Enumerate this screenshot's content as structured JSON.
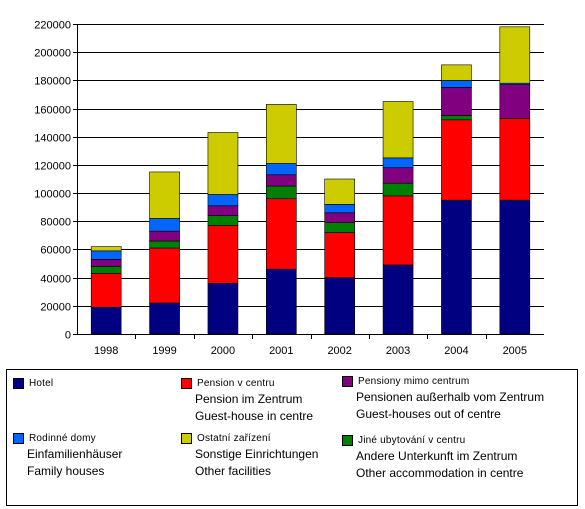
{
  "chart_data": {
    "type": "bar",
    "stacked": true,
    "categories": [
      "1998",
      "1999",
      "2000",
      "2001",
      "2002",
      "2003",
      "2004",
      "2005"
    ],
    "ylim": [
      0,
      220000
    ],
    "yticks": [
      "0",
      "20000",
      "40000",
      "60000",
      "80000",
      "100000",
      "120000",
      "140000",
      "160000",
      "180000",
      "200000",
      "220000"
    ],
    "ytick_values": [
      0,
      20000,
      40000,
      60000,
      80000,
      100000,
      120000,
      140000,
      160000,
      180000,
      200000,
      220000
    ],
    "grid": true,
    "legend_position": "bottom",
    "series": [
      {
        "key": "hotel",
        "color": "#000080",
        "values": [
          19000,
          22000,
          36000,
          46000,
          40000,
          49000,
          95000,
          95000
        ]
      },
      {
        "key": "pension_centre",
        "color": "#ff0000",
        "values": [
          24000,
          39000,
          41000,
          50000,
          32000,
          49000,
          57000,
          58000
        ]
      },
      {
        "key": "other_accommodation_centre",
        "color": "#008000",
        "values": [
          5000,
          5000,
          7000,
          9000,
          7000,
          9000,
          3000,
          0
        ]
      },
      {
        "key": "pensions_out_of_centre",
        "color": "#800080",
        "values": [
          5000,
          7000,
          7000,
          8000,
          7000,
          11000,
          20000,
          24000
        ]
      },
      {
        "key": "family_houses",
        "color": "#0066ff",
        "values": [
          6000,
          9000,
          8000,
          8000,
          6000,
          7000,
          5000,
          1000
        ]
      },
      {
        "key": "other_facilities",
        "color": "#cccc00",
        "values": [
          3000,
          33000,
          44000,
          42000,
          18000,
          40000,
          11000,
          40000
        ]
      }
    ]
  },
  "legend": [
    {
      "series": "hotel",
      "color": "#000080",
      "name": "Hotel",
      "lines": []
    },
    {
      "series": "pension_centre",
      "color": "#ff0000",
      "name": "Pension v centru",
      "lines": [
        "Pension im Zentrum",
        "Guest-house in centre"
      ]
    },
    {
      "series": "pensions_out_of_centre",
      "color": "#800080",
      "name": "Pensiony mimo centrum",
      "lines": [
        "Pensionen außerhalb vom Zentrum",
        "Guest-houses out of centre"
      ]
    },
    {
      "series": "family_houses",
      "color": "#0066ff",
      "name": "Rodinné domy",
      "lines": [
        "Einfamilienhäuser",
        "Family houses"
      ]
    },
    {
      "series": "other_facilities",
      "color": "#cccc00",
      "name": "Ostatní zařízení",
      "lines": [
        "Sonstige Einrichtungen",
        "Other facilities"
      ]
    },
    {
      "series": "other_accommodation_centre",
      "color": "#008000",
      "name": "Jiné ubytování v centru",
      "lines": [
        "Andere Unterkunft  im Zentrum",
        "Other accommodation in centre"
      ]
    }
  ]
}
